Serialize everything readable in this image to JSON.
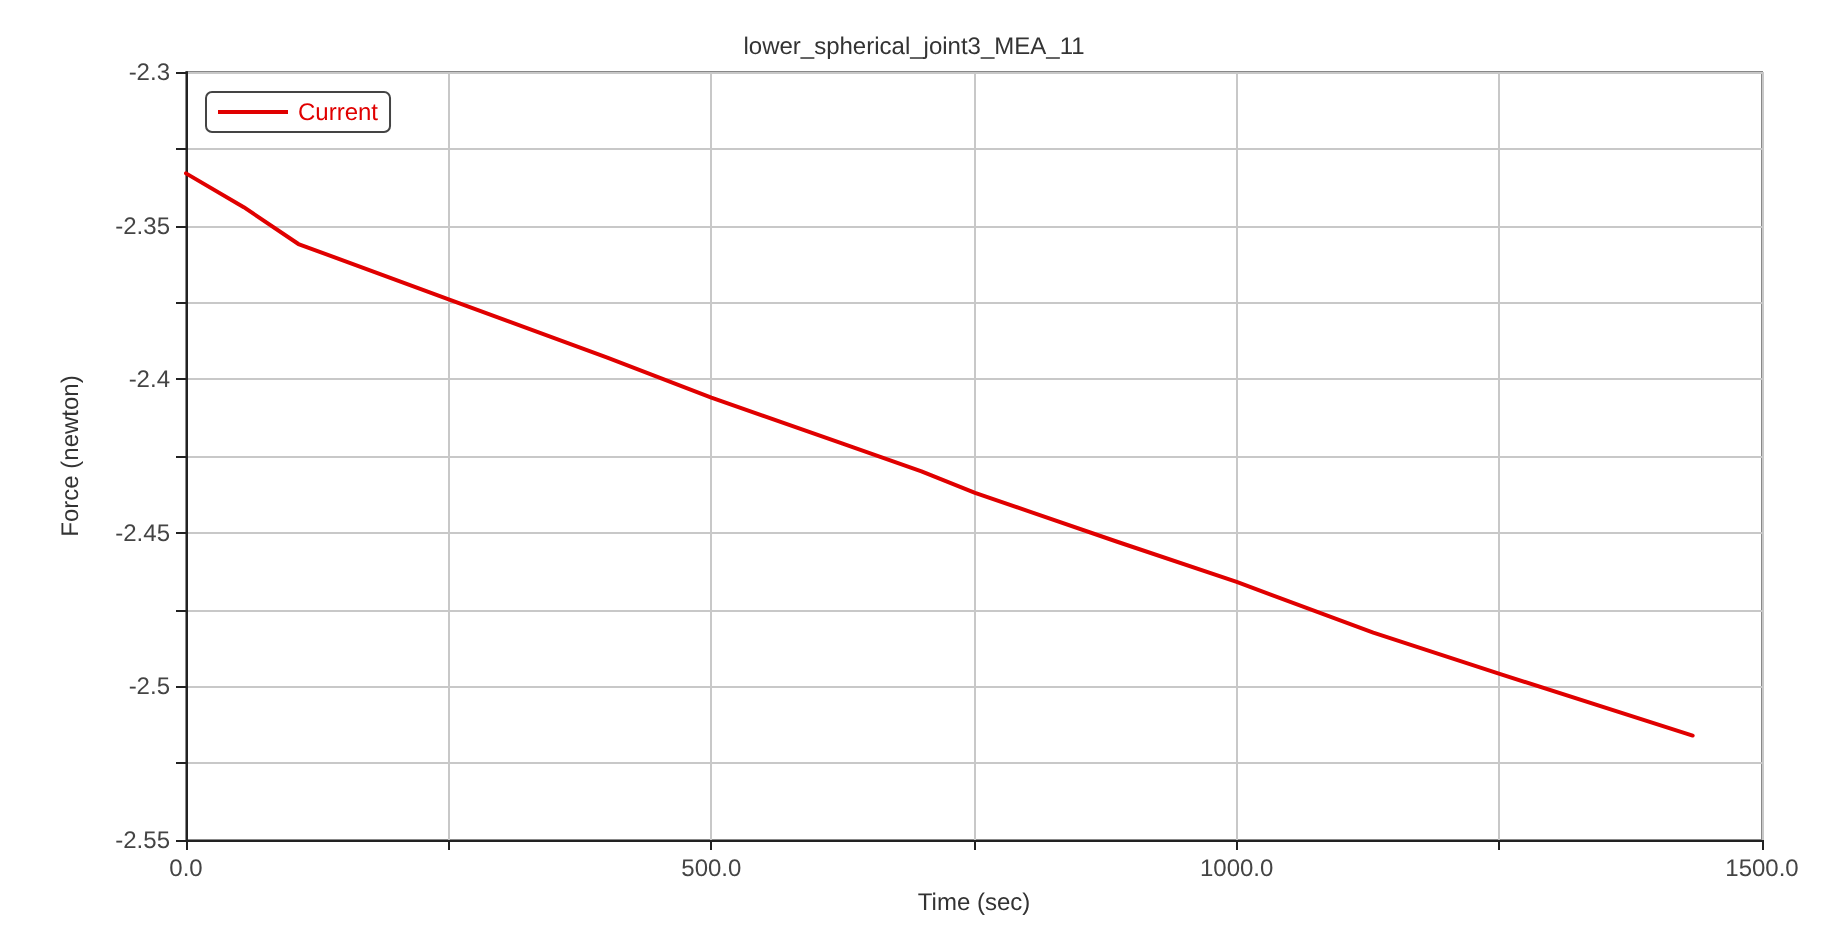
{
  "chart_data": {
    "type": "line",
    "title": "lower_spherical_joint3_MEA_11",
    "xlabel": "Time (sec)",
    "ylabel": "Force (newton)",
    "x": [
      0,
      55,
      107,
      250,
      401,
      500,
      625,
      700,
      751,
      887,
      1000,
      1130,
      1251,
      1434
    ],
    "series": [
      {
        "name": "Current",
        "color": "#e00000",
        "values": [
          -2.333,
          -2.344,
          -2.356,
          -2.374,
          -2.393,
          -2.406,
          -2.421,
          -2.43,
          -2.437,
          -2.453,
          -2.466,
          -2.4825,
          -2.496,
          -2.516
        ]
      }
    ],
    "xlim": [
      0,
      1500
    ],
    "xticks": [
      {
        "value": 0,
        "label": "0.0"
      },
      {
        "value": 250,
        "label": null
      },
      {
        "value": 500,
        "label": "500.0"
      },
      {
        "value": 750,
        "label": null
      },
      {
        "value": 1000,
        "label": "1000.0"
      },
      {
        "value": 1250,
        "label": null
      },
      {
        "value": 1500,
        "label": "1500.0"
      }
    ],
    "ylim": [
      -2.55,
      -2.3
    ],
    "yticks": [
      -2.55,
      {
        "value": -2.525,
        "label": null
      },
      -2.5,
      {
        "value": -2.475,
        "label": null
      },
      -2.45,
      {
        "value": -2.425,
        "label": null
      },
      -2.4,
      {
        "value": -2.375,
        "label": null
      },
      -2.35,
      {
        "value": -2.325,
        "label": null
      },
      -2.3
    ],
    "grid": true,
    "legend": "top left",
    "marker": "none",
    "line_style": "solid"
  }
}
